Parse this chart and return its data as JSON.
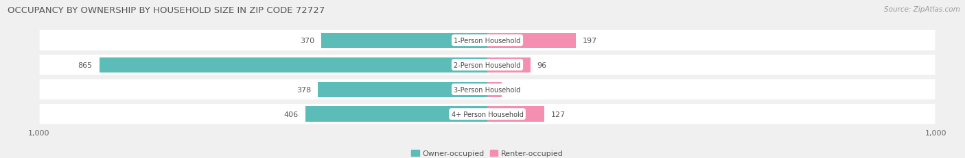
{
  "title": "OCCUPANCY BY OWNERSHIP BY HOUSEHOLD SIZE IN ZIP CODE 72727",
  "source": "Source: ZipAtlas.com",
  "categories": [
    "1-Person Household",
    "2-Person Household",
    "3-Person Household",
    "4+ Person Household"
  ],
  "owner_values": [
    370,
    865,
    378,
    406
  ],
  "renter_values": [
    197,
    96,
    32,
    127
  ],
  "owner_color": "#5bbcb8",
  "renter_color": "#f48fb1",
  "background_color": "#f0f0f0",
  "row_bg_color": "#e2e2e2",
  "max_val": 1000,
  "label_color": "#555555",
  "owner_label_color_on_bar": "#ffffff",
  "title_fontsize": 9.5,
  "source_fontsize": 7.5,
  "axis_label_fontsize": 8,
  "bar_label_fontsize": 8,
  "cat_label_fontsize": 7,
  "legend_fontsize": 8
}
